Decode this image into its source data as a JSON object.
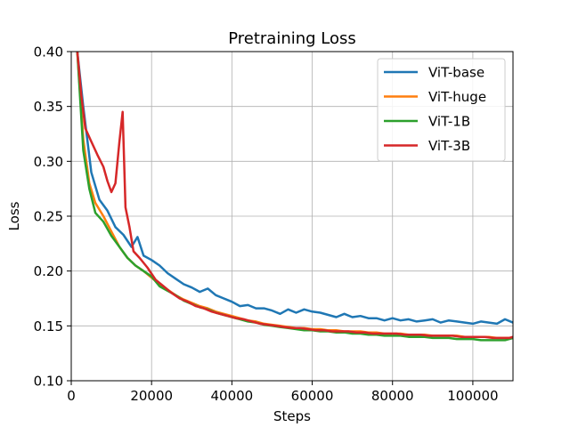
{
  "chart_data": {
    "type": "line",
    "title": "Pretraining Loss",
    "xlabel": "Steps",
    "ylabel": "Loss",
    "xlim": [
      0,
      110000
    ],
    "ylim": [
      0.1,
      0.4
    ],
    "xticks": [
      0,
      20000,
      40000,
      60000,
      80000,
      100000
    ],
    "yticks": [
      0.1,
      0.15,
      0.2,
      0.25,
      0.3,
      0.35,
      0.4
    ],
    "xtick_labels": [
      "0",
      "20000",
      "40000",
      "60000",
      "80000",
      "100000"
    ],
    "ytick_labels": [
      "0.10",
      "0.15",
      "0.20",
      "0.25",
      "0.30",
      "0.35",
      "0.40"
    ],
    "grid": true,
    "legend_position": "top-right",
    "series": [
      {
        "name": "ViT-base",
        "color": "#1f77b4",
        "x": [
          1500,
          3000,
          5000,
          7000,
          9000,
          11000,
          13000,
          15000,
          16500,
          18000,
          20000,
          22000,
          24000,
          26000,
          28000,
          30000,
          32000,
          34000,
          36000,
          38000,
          40000,
          42000,
          44000,
          46000,
          48000,
          50000,
          52000,
          54000,
          56000,
          58000,
          60000,
          62000,
          64000,
          66000,
          68000,
          70000,
          72000,
          74000,
          76000,
          78000,
          80000,
          82000,
          84000,
          86000,
          88000,
          90000,
          92000,
          94000,
          96000,
          98000,
          100000,
          102000,
          104000,
          106000,
          108000,
          110000
        ],
        "values": [
          0.4,
          0.35,
          0.29,
          0.265,
          0.255,
          0.24,
          0.233,
          0.222,
          0.231,
          0.214,
          0.21,
          0.205,
          0.198,
          0.193,
          0.188,
          0.185,
          0.181,
          0.184,
          0.178,
          0.175,
          0.172,
          0.168,
          0.169,
          0.166,
          0.166,
          0.164,
          0.161,
          0.165,
          0.162,
          0.165,
          0.163,
          0.162,
          0.16,
          0.158,
          0.161,
          0.158,
          0.159,
          0.157,
          0.157,
          0.155,
          0.157,
          0.155,
          0.156,
          0.154,
          0.155,
          0.156,
          0.153,
          0.155,
          0.154,
          0.153,
          0.152,
          0.154,
          0.153,
          0.152,
          0.156,
          0.153
        ]
      },
      {
        "name": "ViT-huge",
        "color": "#ff7f0e",
        "x": [
          1500,
          3000,
          4500,
          6000,
          8000,
          10000,
          12000,
          14000,
          16000,
          18000,
          20000,
          22000,
          24000,
          26000,
          28000,
          30000,
          32000,
          34000,
          36000,
          38000,
          40000,
          42000,
          44000,
          46000,
          48000,
          50000,
          52000,
          54000,
          56000,
          58000,
          60000,
          62000,
          64000,
          66000,
          68000,
          70000,
          72000,
          74000,
          76000,
          78000,
          80000,
          82000,
          84000,
          86000,
          88000,
          90000,
          92000,
          94000,
          96000,
          98000,
          100000,
          102000,
          104000,
          106000,
          108000,
          110000
        ],
        "values": [
          0.4,
          0.32,
          0.28,
          0.262,
          0.25,
          0.236,
          0.222,
          0.212,
          0.205,
          0.2,
          0.194,
          0.188,
          0.183,
          0.178,
          0.174,
          0.171,
          0.168,
          0.166,
          0.163,
          0.161,
          0.159,
          0.157,
          0.155,
          0.154,
          0.152,
          0.151,
          0.15,
          0.149,
          0.148,
          0.148,
          0.147,
          0.147,
          0.146,
          0.146,
          0.145,
          0.145,
          0.145,
          0.144,
          0.144,
          0.143,
          0.143,
          0.143,
          0.142,
          0.142,
          0.142,
          0.141,
          0.141,
          0.141,
          0.141,
          0.14,
          0.14,
          0.14,
          0.14,
          0.139,
          0.139,
          0.139
        ]
      },
      {
        "name": "ViT-1B",
        "color": "#2ca02c",
        "x": [
          1500,
          3000,
          4500,
          6000,
          8000,
          10000,
          12000,
          14000,
          16000,
          18000,
          20000,
          22000,
          24000,
          26000,
          28000,
          30000,
          32000,
          34000,
          36000,
          38000,
          40000,
          42000,
          44000,
          46000,
          48000,
          50000,
          52000,
          54000,
          56000,
          58000,
          60000,
          62000,
          64000,
          66000,
          68000,
          70000,
          72000,
          74000,
          76000,
          78000,
          80000,
          82000,
          84000,
          86000,
          88000,
          90000,
          92000,
          94000,
          96000,
          98000,
          100000,
          102000,
          104000,
          106000,
          108000,
          110000
        ],
        "values": [
          0.4,
          0.31,
          0.275,
          0.253,
          0.245,
          0.232,
          0.222,
          0.212,
          0.205,
          0.2,
          0.195,
          0.186,
          0.182,
          0.178,
          0.173,
          0.17,
          0.167,
          0.165,
          0.162,
          0.16,
          0.158,
          0.156,
          0.154,
          0.153,
          0.151,
          0.15,
          0.149,
          0.148,
          0.147,
          0.146,
          0.146,
          0.145,
          0.145,
          0.144,
          0.144,
          0.143,
          0.143,
          0.142,
          0.142,
          0.141,
          0.141,
          0.141,
          0.14,
          0.14,
          0.14,
          0.139,
          0.139,
          0.139,
          0.138,
          0.138,
          0.138,
          0.137,
          0.137,
          0.137,
          0.137,
          0.139
        ]
      },
      {
        "name": "ViT-3B",
        "color": "#d62728",
        "x": [
          1500,
          2500,
          3500,
          5000,
          6500,
          8000,
          9000,
          10000,
          11000,
          12000,
          12800,
          13500,
          14500,
          15500,
          17000,
          19000,
          21000,
          23000,
          25000,
          27000,
          29000,
          31000,
          33000,
          35000,
          37000,
          39000,
          41000,
          43000,
          45000,
          47000,
          49000,
          51000,
          53000,
          55000,
          57000,
          59000,
          61000,
          63000,
          65000,
          67000,
          69000,
          71000,
          73000,
          75000,
          77000,
          79000,
          81000,
          83000,
          85000,
          87000,
          89000,
          91000,
          93000,
          95000,
          97000,
          99000,
          101000,
          103000,
          105000,
          107000,
          109000,
          110000
        ],
        "values": [
          0.4,
          0.36,
          0.33,
          0.318,
          0.306,
          0.295,
          0.282,
          0.272,
          0.28,
          0.318,
          0.345,
          0.258,
          0.24,
          0.218,
          0.212,
          0.203,
          0.192,
          0.186,
          0.18,
          0.175,
          0.172,
          0.168,
          0.166,
          0.163,
          0.161,
          0.159,
          0.157,
          0.156,
          0.154,
          0.152,
          0.151,
          0.15,
          0.149,
          0.148,
          0.148,
          0.147,
          0.146,
          0.146,
          0.145,
          0.145,
          0.145,
          0.144,
          0.144,
          0.143,
          0.143,
          0.143,
          0.143,
          0.142,
          0.142,
          0.142,
          0.141,
          0.141,
          0.141,
          0.141,
          0.14,
          0.14,
          0.14,
          0.14,
          0.139,
          0.139,
          0.139,
          0.14
        ]
      }
    ]
  }
}
